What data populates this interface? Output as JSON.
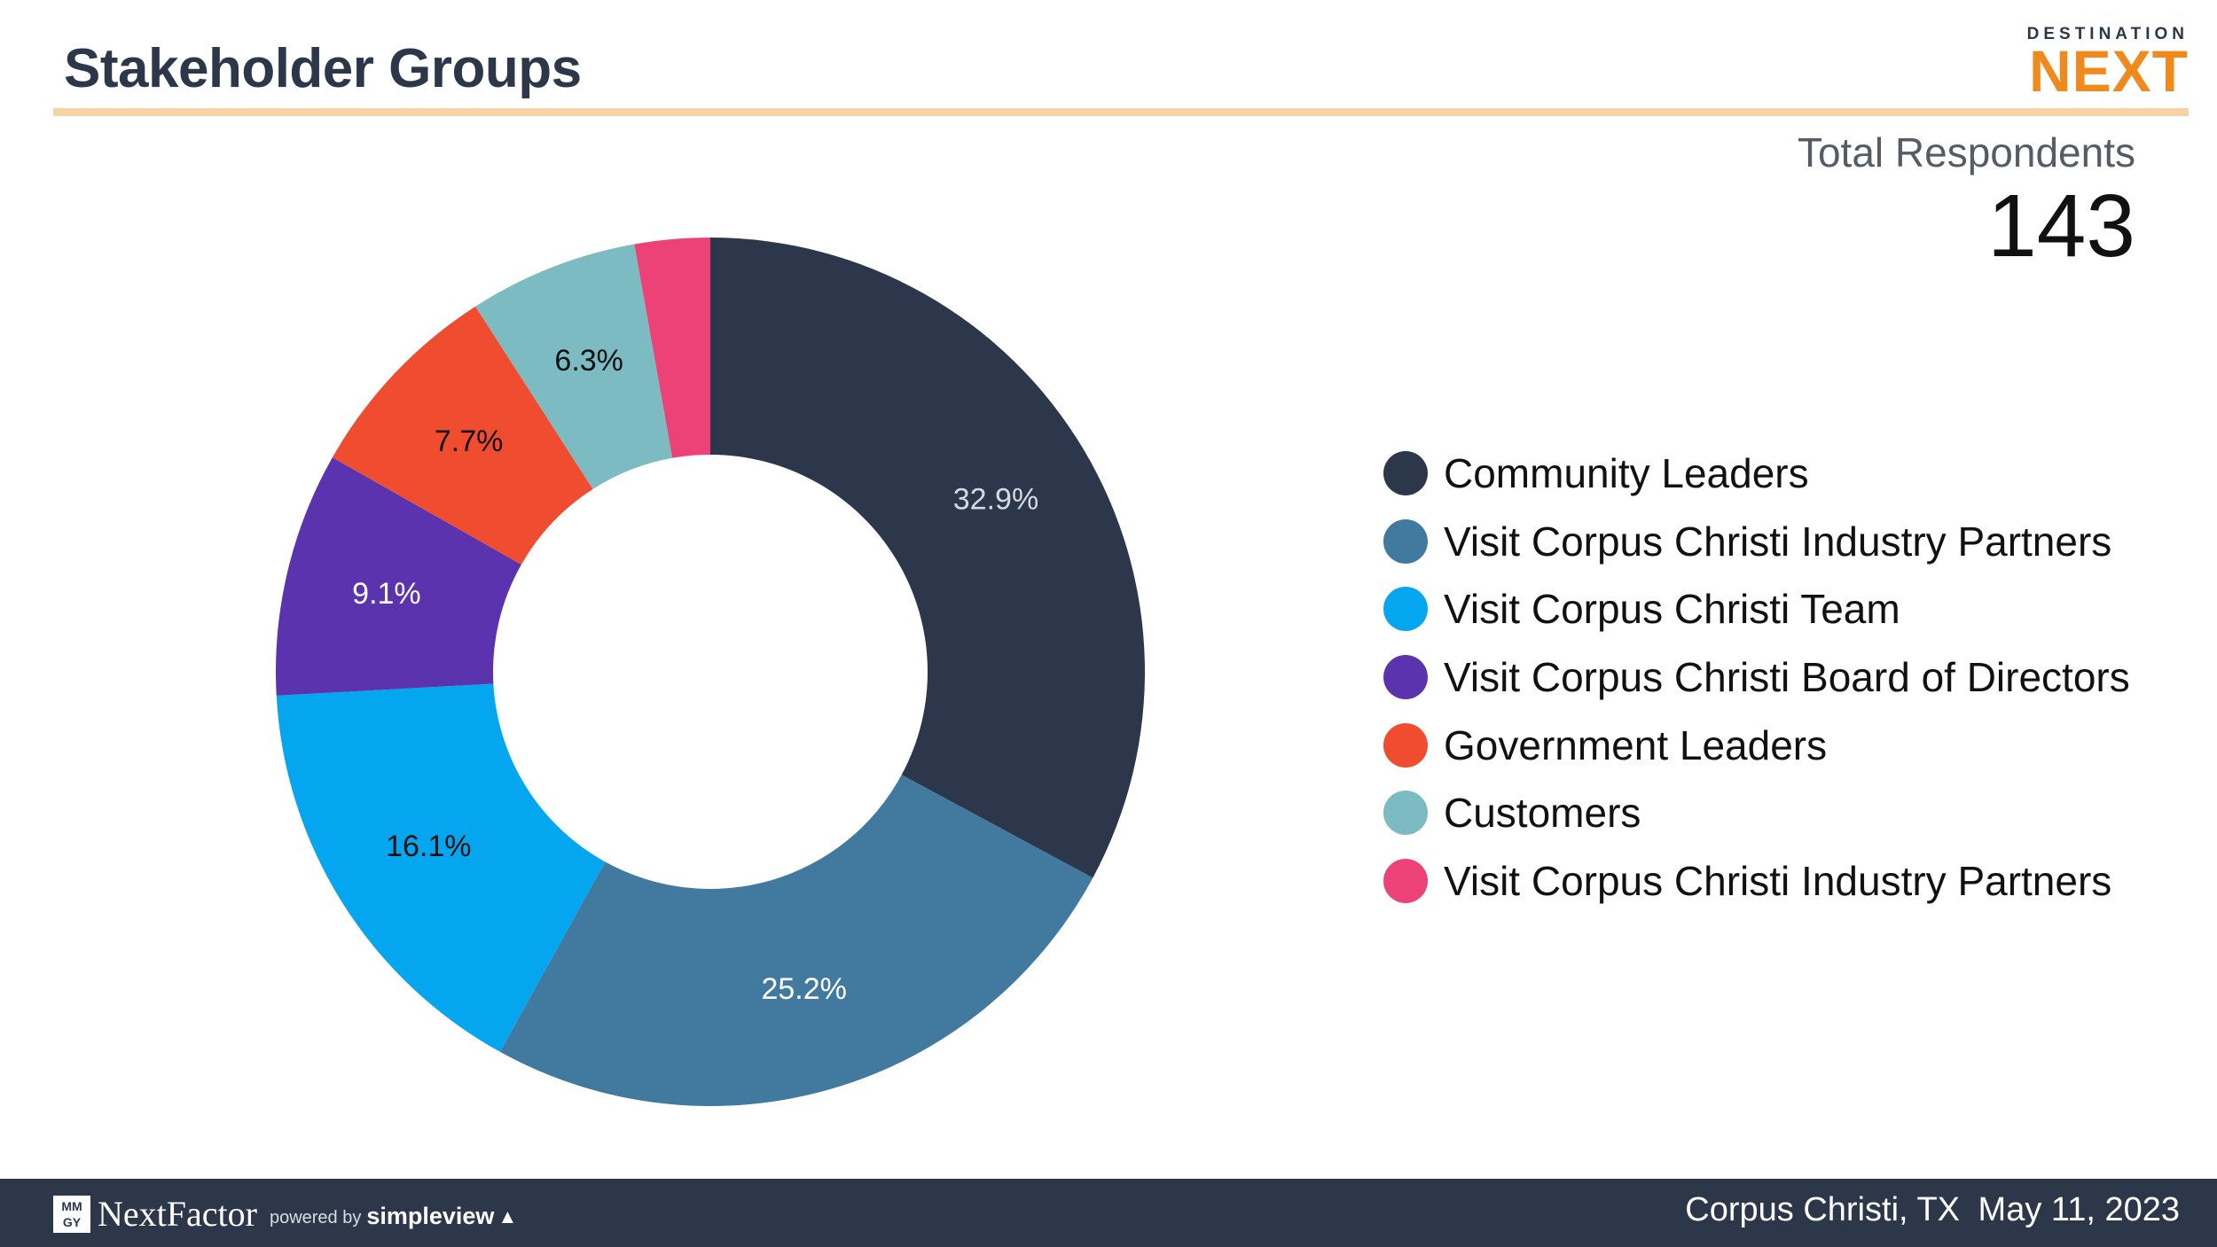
{
  "header": {
    "title": "Stakeholder Groups"
  },
  "logo": {
    "small_text": "DESTINATION",
    "big_text": "NEXT"
  },
  "summary": {
    "label": "Total Respondents",
    "value": "143"
  },
  "colors": {
    "title": "#2c3749",
    "rule": "#f6d3a6",
    "footer_bg": "#2c3749",
    "logo_orange": "#f08a1d"
  },
  "chart_data": {
    "type": "pie",
    "variant": "donut",
    "title": "Stakeholder Groups",
    "categories": [
      "Community Leaders",
      "Visit Corpus Christi Industry Partners",
      "Visit Corpus Christi Team",
      "Visit Corpus Christi Board of Directors",
      "Government Leaders",
      "Customers",
      "Visit Corpus Christi Industry Partners"
    ],
    "values": [
      32.9,
      25.2,
      16.1,
      9.1,
      7.7,
      6.3,
      2.8
    ],
    "data_labels": [
      "32.9%",
      "25.2%",
      "16.1%",
      "9.1%",
      "7.7%",
      "6.3%",
      ""
    ],
    "label_colors": [
      "#d4d9e0",
      "#ffffff",
      "#111111",
      "#ffffff",
      "#111111",
      "#111111",
      "#111111"
    ],
    "colors": [
      "#2c374b",
      "#41799f",
      "#05a6f0",
      "#5c33ae",
      "#f04c2f",
      "#7dbbc2",
      "#ed4277"
    ],
    "legend_position": "right"
  },
  "footer": {
    "brand": {
      "mmgy_top": "MM",
      "mmgy_bottom": "GY",
      "name": "NextFactor",
      "powered_by": "powered by",
      "partner": "simpleview"
    },
    "location": "Corpus Christi, TX",
    "date": "May 11, 2023"
  }
}
